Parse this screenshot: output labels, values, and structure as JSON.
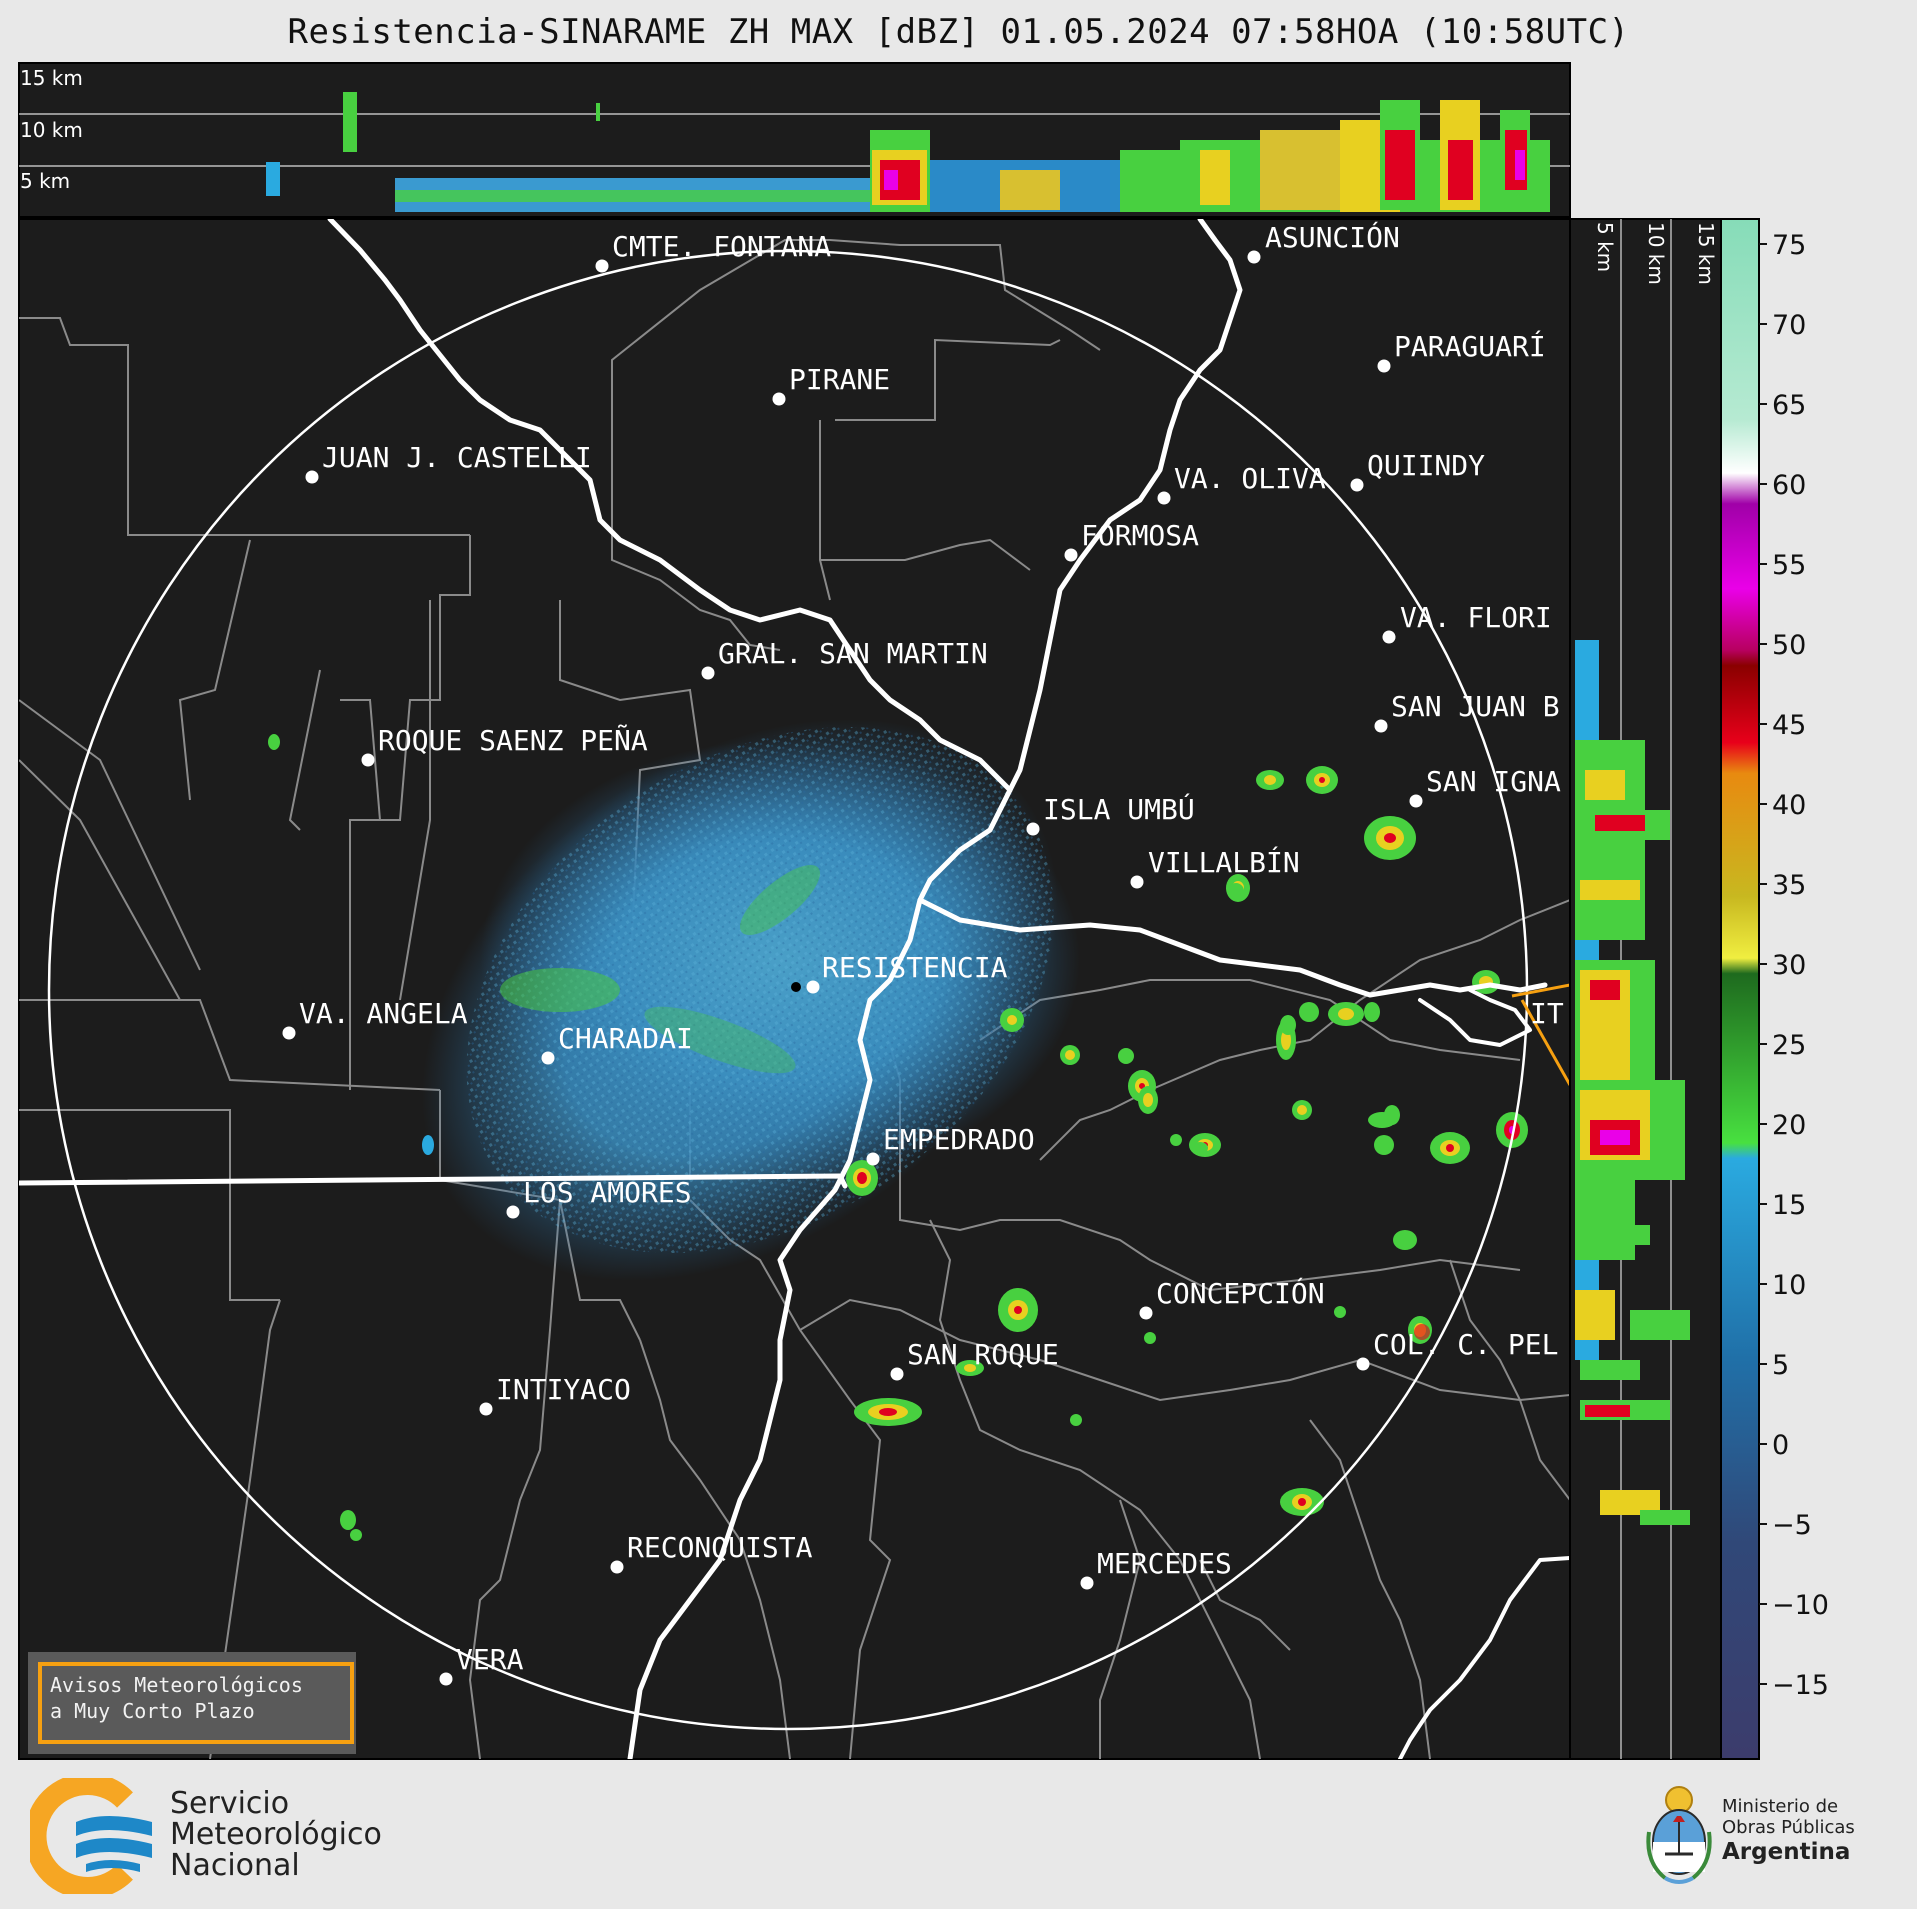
{
  "header": {
    "title": "Resistencia-SINARAME ZH MAX [dBZ] 01.05.2024 07:58HOA (10:58UTC)"
  },
  "top_profile": {
    "height_labels": [
      "15 km",
      "10 km",
      "5 km"
    ]
  },
  "side_profile": {
    "height_labels": [
      "5 km",
      "10 km",
      "15 km"
    ]
  },
  "colorbar": {
    "unit": "dBZ",
    "ticks": [
      75,
      70,
      65,
      60,
      55,
      50,
      45,
      40,
      35,
      30,
      25,
      20,
      15,
      10,
      5,
      0,
      "−5",
      "−10",
      "−15"
    ]
  },
  "map": {
    "radar_site": "RESISTENCIA",
    "cities": [
      {
        "name": "CMTE. FONTANA"
      },
      {
        "name": "ASUNCIÓN"
      },
      {
        "name": "PARAGUARÍ"
      },
      {
        "name": "PIRANE"
      },
      {
        "name": "JUAN J. CASTELLI"
      },
      {
        "name": "VA. OLIVA"
      },
      {
        "name": "QUIINDY"
      },
      {
        "name": "FORMOSA"
      },
      {
        "name": "VA. FLORI"
      },
      {
        "name": "GRAL. SAN MARTIN"
      },
      {
        "name": "SAN JUAN B"
      },
      {
        "name": "ROQUE SAENZ PEÑA"
      },
      {
        "name": "SAN IGNA"
      },
      {
        "name": "ISLA UMBÚ"
      },
      {
        "name": "VILLALBÍN"
      },
      {
        "name": "RESISTENCIA"
      },
      {
        "name": "VA. ANGELA"
      },
      {
        "name": "CHARADAI"
      },
      {
        "name": "IT"
      },
      {
        "name": "EMPEDRADO"
      },
      {
        "name": "LOS AMORES"
      },
      {
        "name": "CONCEPCIÓN"
      },
      {
        "name": "COL. C. PEL"
      },
      {
        "name": "SAN ROQUE"
      },
      {
        "name": "INTIYACO"
      },
      {
        "name": "RECONQUISTA"
      },
      {
        "name": "MERCEDES"
      },
      {
        "name": "VERA"
      }
    ]
  },
  "warning_box": {
    "line1": "Avisos Meteorológicos",
    "line2": "a Muy Corto Plazo"
  },
  "footer": {
    "smn_line1": "Servicio",
    "smn_line2": "Meteorológico",
    "smn_line3": "Nacional",
    "ministry_line1": "Ministerio de",
    "ministry_line2": "Obras Públicas",
    "ministry_line3": "Argentina"
  },
  "colors": {
    "map_background": "#1c1c1c",
    "border_lines": "#8a8a8a",
    "rivers": "#ffffff",
    "smn_orange": "#f6a623",
    "smn_blue": "#1e88c8",
    "warning_border": "#f6a011"
  }
}
